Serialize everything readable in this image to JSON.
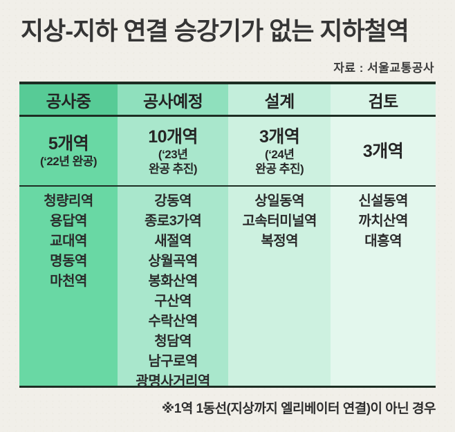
{
  "title": "지상-지하 연결 승강기가 없는 지하철역",
  "source": "자료 : 서울교통공사",
  "footnote": "※1역 1동선(지상까지 엘리베이터 연결)이 아닌 경우",
  "colors": {
    "paper": "#f1efe9",
    "border_dark": "#1d2d23",
    "title_text": "#353535",
    "body_text": "#2b2b2b"
  },
  "chart_data": {
    "type": "table",
    "title": "지상-지하 연결 승강기가 없는 지하철역",
    "source": "자료 : 서울교통공사",
    "footnote": "※1역 1동선(지상까지 엘리베이터 연결)이 아닌 경우",
    "columns": [
      {
        "stage": "공사중",
        "count": "5개역",
        "count_note": [
          "(‘22년 완공)"
        ],
        "stations": [
          "청량리역",
          "용답역",
          "교대역",
          "명동역",
          "마천역"
        ],
        "header_bg": "#57cb96",
        "body_bg": "#69d8a4"
      },
      {
        "stage": "공사예정",
        "count": "10개역",
        "count_note": [
          "(‘23년",
          "완공 추진)"
        ],
        "stations": [
          "강동역",
          "종로3가역",
          "새절역",
          "상월곡역",
          "봉화산역",
          "구산역",
          "수락산역",
          "청담역",
          "남구로역",
          "광명사거리역"
        ],
        "header_bg": "#8fe0bd",
        "body_bg": "#a9e7cc"
      },
      {
        "stage": "설계",
        "count": "3개역",
        "count_note": [
          "(‘24년",
          "완공 추진)"
        ],
        "stations": [
          "상일동역",
          "고속터미널역",
          "복정역"
        ],
        "header_bg": "#c3eedb",
        "body_bg": "#cdf1e0"
      },
      {
        "stage": "검토",
        "count": "3개역",
        "count_note": [],
        "stations": [
          "신설동역",
          "까치산역",
          "대흥역"
        ],
        "header_bg": "#d9f4e7",
        "body_bg": "#e3f7ed"
      }
    ]
  }
}
